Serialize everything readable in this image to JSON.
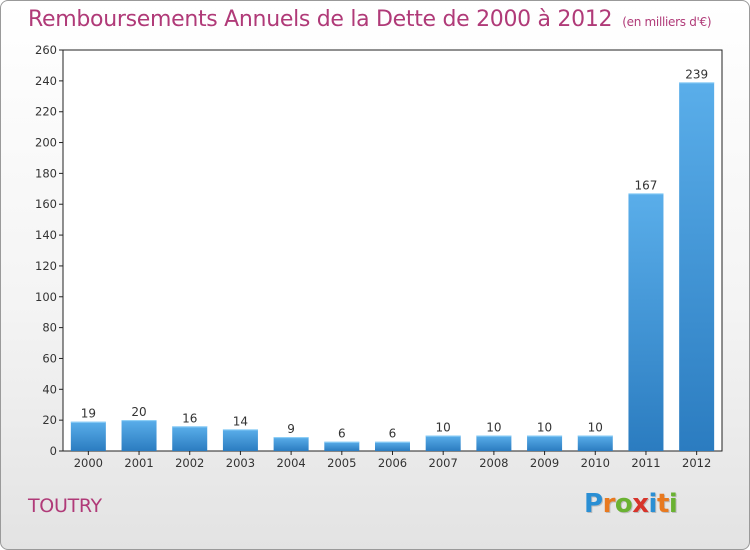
{
  "header": {
    "title": "Remboursements Annuels de la Dette de 2000 à 2012",
    "unit": "(en milliers d'€)"
  },
  "footer": {
    "commune": "TOUTRY",
    "brand_letters": [
      "P",
      "r",
      "o",
      "x",
      "i",
      "t",
      "i"
    ],
    "brand_colors": [
      "#2a8fd4",
      "#e8791f",
      "#6ab232",
      "#d7342b",
      "#2a8fd4",
      "#e8791f",
      "#6ab232"
    ]
  },
  "colors": {
    "bar_light": "#5aaeea",
    "bar_dark": "#2b7cc0",
    "title": "#b03a78"
  },
  "chart_data": {
    "type": "bar",
    "categories": [
      "2000",
      "2001",
      "2002",
      "2003",
      "2004",
      "2005",
      "2006",
      "2007",
      "2008",
      "2009",
      "2010",
      "2011",
      "2012"
    ],
    "values": [
      19,
      20,
      16,
      14,
      9,
      6,
      6,
      10,
      10,
      10,
      10,
      167,
      239
    ],
    "ylim": [
      0,
      260
    ],
    "yticks": [
      0,
      20,
      40,
      60,
      80,
      100,
      120,
      140,
      160,
      180,
      200,
      220,
      240,
      260
    ],
    "grid": false,
    "legend": "none"
  }
}
